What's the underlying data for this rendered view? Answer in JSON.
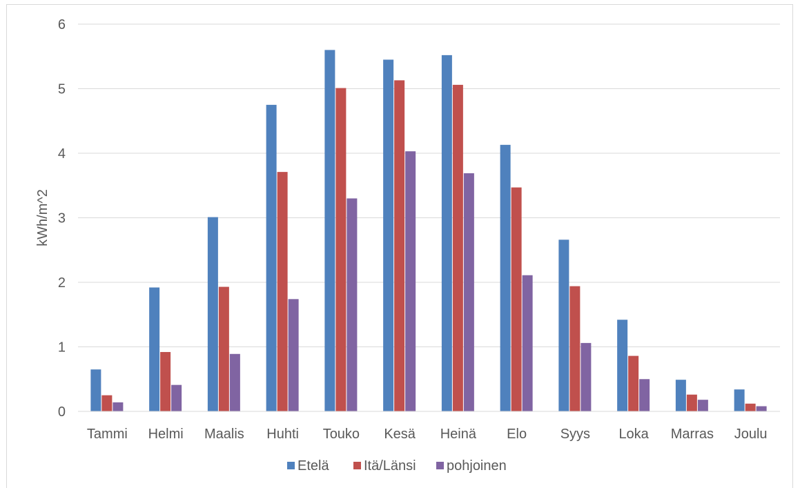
{
  "chart_data": {
    "type": "bar",
    "title": "",
    "xlabel": "",
    "ylabel": "kWh/m^2",
    "ylim": [
      0,
      6
    ],
    "yticks": [
      0,
      1,
      2,
      3,
      4,
      5,
      6
    ],
    "grid": true,
    "legend_position": "bottom",
    "categories": [
      "Tammi",
      "Helmi",
      "Maalis",
      "Huhti",
      "Touko",
      "Kesä",
      "Heinä",
      "Elo",
      "Syys",
      "Loka",
      "Marras",
      "Joulu"
    ],
    "series": [
      {
        "name": "Etelä",
        "color": "#4f81bd",
        "values": [
          0.65,
          1.92,
          3.01,
          4.75,
          5.6,
          5.45,
          5.52,
          4.13,
          2.66,
          1.42,
          0.49,
          0.34
        ]
      },
      {
        "name": "Itä/Länsi",
        "color": "#c0504d",
        "values": [
          0.25,
          0.92,
          1.93,
          3.71,
          5.01,
          5.13,
          5.06,
          3.47,
          1.94,
          0.86,
          0.26,
          0.12
        ]
      },
      {
        "name": "pohjoinen",
        "color": "#8064a2",
        "values": [
          0.14,
          0.41,
          0.89,
          1.74,
          3.3,
          4.03,
          3.69,
          2.11,
          1.06,
          0.5,
          0.18,
          0.08
        ]
      }
    ]
  }
}
